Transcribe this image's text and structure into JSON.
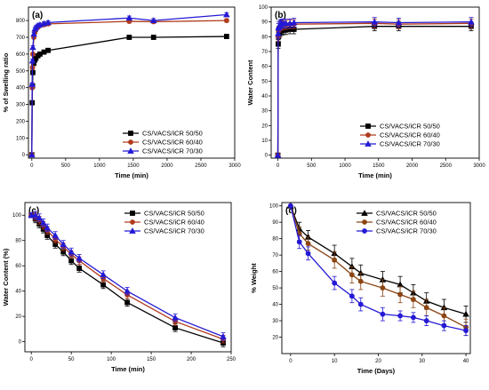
{
  "chart_data": [
    {
      "type": "line",
      "panel_label": "(a)",
      "xlabel": "Time (min)",
      "ylabel": "% of Swelling ratio",
      "xlim": [
        -50,
        3000
      ],
      "ylim": [
        -20,
        880
      ],
      "xticks": [
        "0",
        "500",
        "1000",
        "1500",
        "2000",
        "2500",
        "3000"
      ],
      "xtick_values": [
        0,
        500,
        1000,
        1500,
        2000,
        2500,
        3000
      ],
      "yticks": [
        "0",
        "100",
        "200",
        "300",
        "400",
        "500",
        "600",
        "700",
        "800"
      ],
      "ytick_values": [
        0,
        100,
        200,
        300,
        400,
        500,
        600,
        700,
        800
      ],
      "legend_position": "bottom-right",
      "x": [
        0,
        5,
        10,
        15,
        30,
        45,
        60,
        90,
        120,
        180,
        240,
        1440,
        1800,
        2880
      ],
      "series": [
        {
          "name": "CS/VACS/iCR 50/50",
          "color": "#000000",
          "marker": "square",
          "values": [
            0,
            310,
            410,
            490,
            545,
            565,
            575,
            590,
            600,
            612,
            622,
            700,
            700,
            705
          ],
          "errors": [
            0,
            8,
            10,
            10,
            10,
            10,
            10,
            10,
            10,
            10,
            10,
            12,
            12,
            12
          ]
        },
        {
          "name": "CS/VACS/iCR 60/40",
          "color": "#b03a1c",
          "marker": "circle",
          "values": [
            0,
            400,
            520,
            600,
            700,
            730,
            745,
            760,
            770,
            775,
            780,
            795,
            793,
            800
          ],
          "errors": [
            0,
            10,
            10,
            10,
            10,
            10,
            10,
            10,
            10,
            10,
            10,
            10,
            10,
            10
          ]
        },
        {
          "name": "CS/VACS/iCR 70/30",
          "color": "#2419d4",
          "marker": "triangle",
          "values": [
            0,
            420,
            560,
            640,
            720,
            750,
            760,
            770,
            775,
            782,
            788,
            815,
            800,
            835
          ],
          "errors": [
            0,
            10,
            10,
            10,
            10,
            10,
            10,
            10,
            10,
            10,
            10,
            12,
            12,
            12
          ]
        }
      ]
    },
    {
      "type": "line",
      "panel_label": "(b)",
      "xlabel": "Time (min)",
      "ylabel": "Water Content",
      "xlim": [
        -100,
        3000
      ],
      "ylim": [
        -2,
        100
      ],
      "xticks": [
        "0",
        "500",
        "1000",
        "1500",
        "2000",
        "2500",
        "3000"
      ],
      "xtick_values": [
        0,
        500,
        1000,
        1500,
        2000,
        2500,
        3000
      ],
      "yticks": [
        "0",
        "10",
        "20",
        "30",
        "40",
        "50",
        "60",
        "70",
        "80",
        "90",
        "100"
      ],
      "ytick_values": [
        0,
        10,
        20,
        30,
        40,
        50,
        60,
        70,
        80,
        90,
        100
      ],
      "legend_position": "bottom-right",
      "x": [
        0,
        5,
        10,
        15,
        30,
        45,
        60,
        90,
        120,
        180,
        240,
        1440,
        1800,
        2880
      ],
      "series": [
        {
          "name": "CS/VACS/iCR 50/50",
          "color": "#000000",
          "marker": "square",
          "values": [
            0,
            75,
            80,
            82,
            83,
            84,
            84,
            84.5,
            84.5,
            85,
            85,
            87,
            87,
            87
          ],
          "errors": [
            0,
            3,
            3,
            3,
            3,
            3,
            3,
            3,
            3,
            3,
            3,
            3,
            3,
            3
          ]
        },
        {
          "name": "CS/VACS/iCR 60/40",
          "color": "#b03a1c",
          "marker": "circle",
          "values": [
            0,
            80,
            84,
            86,
            87,
            87.5,
            88,
            88,
            88,
            88.5,
            88.5,
            89,
            88.5,
            89
          ],
          "errors": [
            0,
            3,
            3,
            3,
            3,
            3,
            3,
            3,
            3,
            3,
            3,
            3,
            3,
            3
          ]
        },
        {
          "name": "CS/VACS/iCR 70/30",
          "color": "#2419d4",
          "marker": "triangle",
          "values": [
            0,
            82,
            86,
            87,
            88,
            88.5,
            89,
            89,
            89,
            89,
            89.5,
            90,
            89.5,
            90
          ],
          "errors": [
            0,
            3,
            3,
            3,
            3,
            3,
            3,
            3,
            3,
            3,
            3,
            3,
            3,
            3
          ]
        }
      ]
    },
    {
      "type": "line",
      "panel_label": "(c)",
      "xlabel": "Time (min)",
      "ylabel": "Water Content (%)",
      "xlim": [
        -8,
        250
      ],
      "ylim": [
        -8,
        110
      ],
      "xticks": [
        "0",
        "50",
        "100",
        "150",
        "200",
        "250"
      ],
      "xtick_values": [
        0,
        50,
        100,
        150,
        200,
        250
      ],
      "yticks": [
        "0",
        "20",
        "40",
        "60",
        "80",
        "100"
      ],
      "ytick_values": [
        0,
        20,
        40,
        60,
        80,
        100
      ],
      "legend_position": "top-right",
      "x": [
        0,
        5,
        10,
        15,
        20,
        30,
        40,
        50,
        60,
        90,
        120,
        180,
        240
      ],
      "series": [
        {
          "name": "CS/VACS/iCR 50/50",
          "color": "#000000",
          "marker": "square",
          "values": [
            100,
            97,
            93,
            89,
            84,
            77,
            71,
            64,
            58,
            45,
            31,
            11,
            -1
          ],
          "errors": [
            2,
            3,
            3,
            3,
            3,
            3,
            3,
            3,
            3,
            3,
            3,
            3,
            3
          ]
        },
        {
          "name": "CS/VACS/iCR 60/40",
          "color": "#b03a1c",
          "marker": "circle",
          "values": [
            100,
            99,
            96,
            92,
            88,
            81,
            75,
            69,
            64,
            50,
            37,
            16,
            2
          ],
          "errors": [
            2,
            3,
            3,
            3,
            3,
            3,
            3,
            3,
            3,
            3,
            3,
            3,
            3
          ]
        },
        {
          "name": "CS/VACS/iCR 70/30",
          "color": "#2419d4",
          "marker": "triangle",
          "values": [
            100,
            100,
            98,
            94,
            90,
            84,
            77,
            71,
            66,
            53,
            40,
            19,
            4
          ],
          "errors": [
            2,
            3,
            3,
            3,
            3,
            3,
            3,
            3,
            3,
            3,
            3,
            3,
            3
          ]
        }
      ]
    },
    {
      "type": "line",
      "panel_label": "(d)",
      "xlabel": "Time (Days)",
      "ylabel": "% Weight",
      "xlim": [
        -2,
        41
      ],
      "ylim": [
        10,
        102
      ],
      "xticks": [
        "0",
        "10",
        "20",
        "30",
        "40"
      ],
      "xtick_values": [
        0,
        10,
        20,
        30,
        40
      ],
      "yticks": [
        "20",
        "30",
        "40",
        "50",
        "60",
        "70",
        "80",
        "90",
        "100"
      ],
      "ytick_values": [
        20,
        30,
        40,
        50,
        60,
        70,
        80,
        90,
        100
      ],
      "legend_position": "top-right",
      "x": [
        0,
        2,
        4,
        10,
        14,
        16,
        21,
        25,
        28,
        31,
        35,
        40
      ],
      "series": [
        {
          "name": "CS/VACS/iCR 50/50",
          "color": "#000000",
          "marker": "triangle",
          "values": [
            100,
            86,
            81,
            71,
            63,
            59,
            55,
            52,
            47,
            42,
            38,
            34
          ],
          "errors": [
            0,
            4,
            4,
            5,
            5,
            5,
            5,
            5,
            5,
            5,
            5,
            5
          ]
        },
        {
          "name": "CS/VACS/iCR 60/40",
          "color": "#8b4513",
          "marker": "circle",
          "values": [
            100,
            83,
            77,
            67,
            58,
            54,
            50,
            46,
            43,
            38,
            33,
            26
          ],
          "errors": [
            0,
            4,
            4,
            5,
            5,
            5,
            5,
            5,
            5,
            5,
            5,
            5
          ]
        },
        {
          "name": "CS/VACS/iCR 70/30",
          "color": "#2419d4",
          "marker": "circle",
          "values": [
            100,
            78,
            71,
            53,
            45,
            40,
            34,
            33,
            32,
            30,
            27,
            24
          ],
          "errors": [
            0,
            4,
            4,
            4,
            4,
            4,
            4,
            3,
            3,
            3,
            3,
            3
          ]
        }
      ]
    }
  ]
}
